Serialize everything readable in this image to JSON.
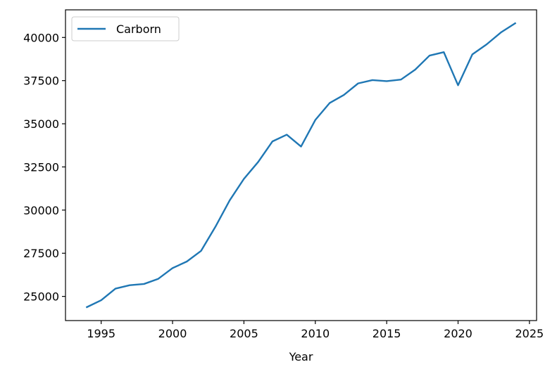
{
  "chart_data": {
    "type": "line",
    "title": "",
    "xlabel": "Year",
    "ylabel": "",
    "xlim": [
      1992.5,
      2025.5
    ],
    "ylim": [
      23600,
      41600
    ],
    "xticks": [
      1995,
      2000,
      2005,
      2010,
      2015,
      2020,
      2025
    ],
    "yticks": [
      25000,
      27500,
      30000,
      32500,
      35000,
      37500,
      40000
    ],
    "legend": "upper-left",
    "grid": false,
    "series": [
      {
        "name": "Carborn",
        "color": "#1f77b4",
        "x": [
          1994,
          1995,
          1996,
          1997,
          1998,
          1999,
          2000,
          2001,
          2002,
          2003,
          2004,
          2005,
          2006,
          2007,
          2008,
          2009,
          2010,
          2011,
          2012,
          2013,
          2014,
          2015,
          2016,
          2017,
          2018,
          2019,
          2020,
          2021,
          2022,
          2023,
          2024
        ],
        "y": [
          24380,
          24780,
          25450,
          25650,
          25720,
          26020,
          26640,
          27020,
          27640,
          29030,
          30560,
          31810,
          32790,
          33980,
          34370,
          33680,
          35220,
          36200,
          36670,
          37340,
          37530,
          37470,
          37560,
          38140,
          38950,
          39150,
          37230,
          39020,
          39600,
          40290,
          40820
        ]
      }
    ]
  }
}
